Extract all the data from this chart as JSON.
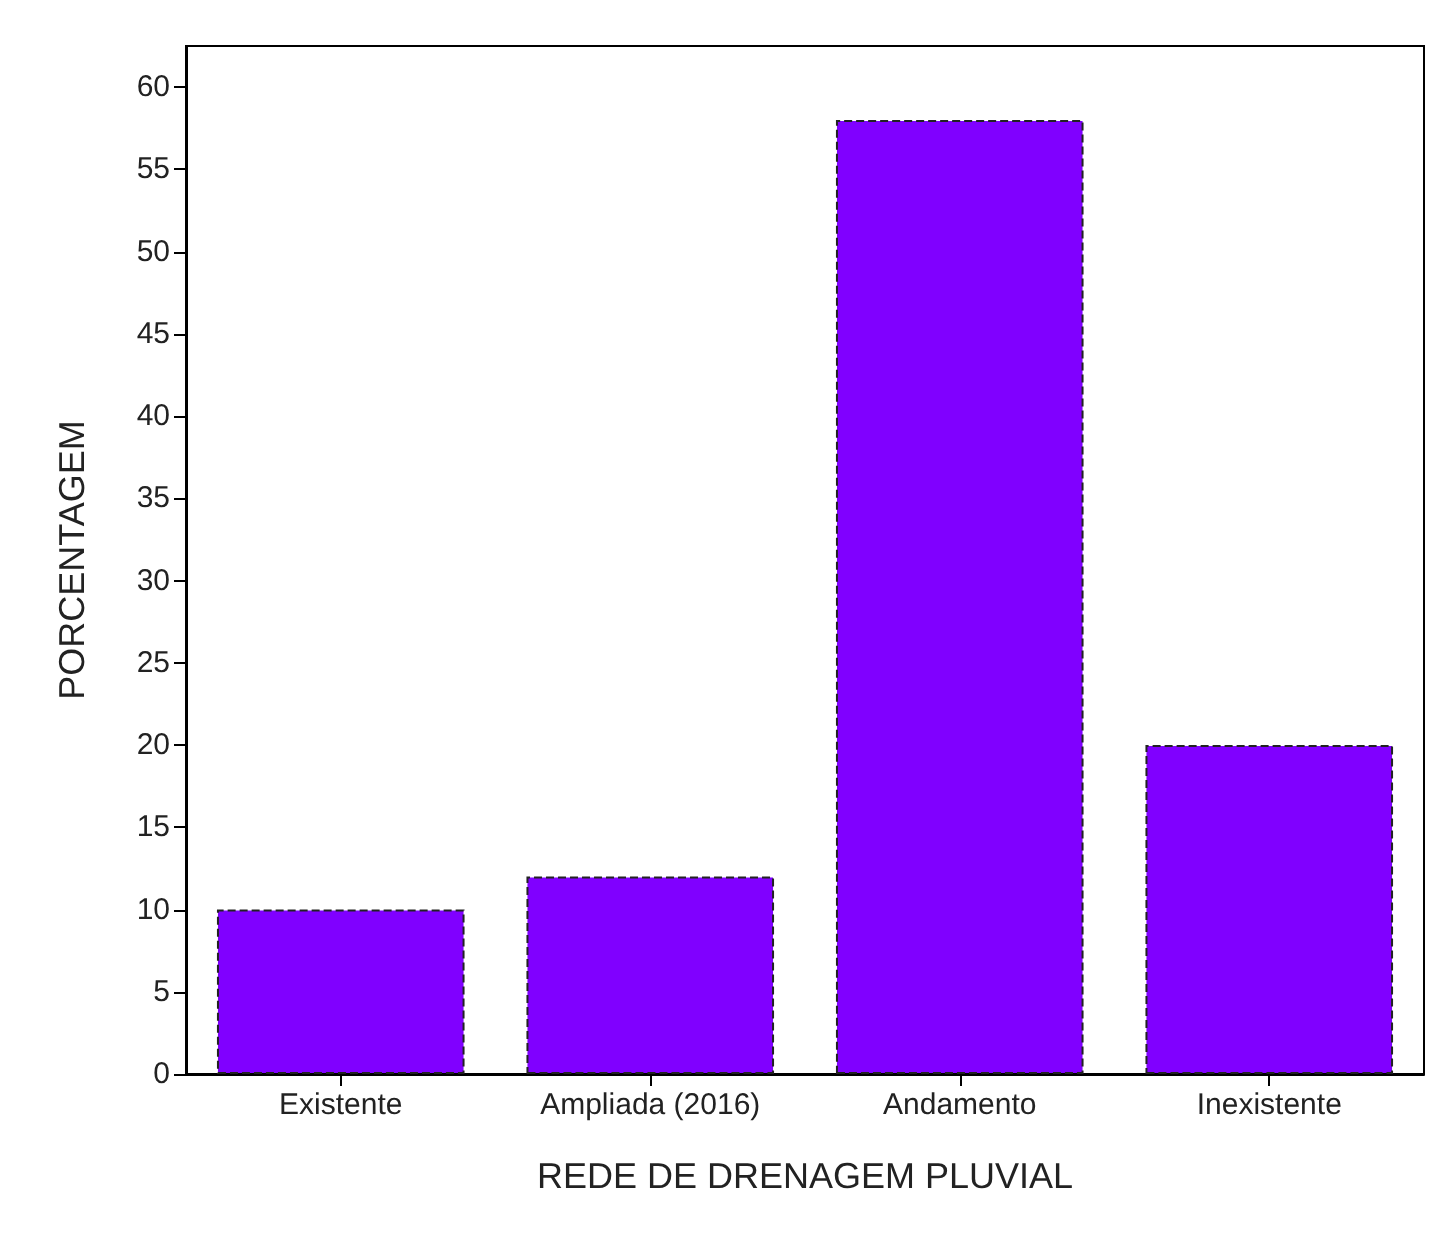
{
  "chart_data": {
    "type": "bar",
    "xlabel": "REDE DE DRENAGEM PLUVIAL",
    "ylabel": "PORCENTAGEM",
    "categories": [
      "Existente",
      "Ampliada (2016)",
      "Andamento",
      "Inexistente"
    ],
    "values": [
      10,
      12,
      58,
      20
    ],
    "color": "#8000ff",
    "ylim": [
      0,
      62.5
    ],
    "yticks": [
      0,
      5,
      10,
      15,
      20,
      25,
      30,
      35,
      40,
      45,
      50,
      55,
      60
    ],
    "grid": false
  }
}
